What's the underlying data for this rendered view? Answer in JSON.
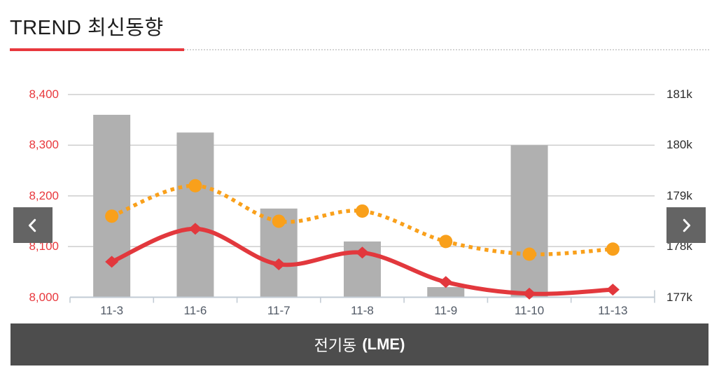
{
  "header": {
    "title": "TREND 최신동향"
  },
  "caption": {
    "name": "전기동",
    "exchange": "(LME)"
  },
  "colors": {
    "accent_red": "#E8383D",
    "line_red": "#E2383D",
    "line_orange": "#F9A01B",
    "bar_gray": "#B0B0B0",
    "grid": "#CDCDCD",
    "axis": "#C2CBD4",
    "x_label": "#525A66",
    "y_left_label": "#E8383D",
    "y_right_label": "#2B2B2B",
    "button_bg": "#646464",
    "caption_bg": "#4D4D4D"
  },
  "chart_data": {
    "type": "combo",
    "title": "전기동 (LME)",
    "categories": [
      "11-3",
      "11-6",
      "11-7",
      "11-8",
      "11-9",
      "11-10",
      "11-13"
    ],
    "series": [
      {
        "name": "bar-series",
        "type": "bar",
        "axis": "left",
        "color": "#B0B0B0",
        "values": [
          8360,
          8325,
          8175,
          8110,
          8020,
          8300,
          null
        ]
      },
      {
        "name": "solid-line-series",
        "type": "line",
        "style": "solid",
        "marker": "diamond",
        "axis": "left",
        "color": "#E2383D",
        "values": [
          8070,
          8135,
          8065,
          8088,
          8030,
          8007,
          8015
        ]
      },
      {
        "name": "dotted-line-series",
        "type": "line",
        "style": "dotted",
        "marker": "circle",
        "axis": "right",
        "color": "#F9A01B",
        "values": [
          178.6,
          179.2,
          178.5,
          178.7,
          178.1,
          177.85,
          177.95
        ]
      }
    ],
    "y_left": {
      "ticks": [
        "8,400",
        "8,300",
        "8,200",
        "8,100",
        "8,000"
      ],
      "min": 8000,
      "max": 8400
    },
    "y_right": {
      "ticks": [
        "181k",
        "180k",
        "179k",
        "178k",
        "177k"
      ],
      "min": 177,
      "max": 181
    },
    "grid": true,
    "legend": "none"
  }
}
